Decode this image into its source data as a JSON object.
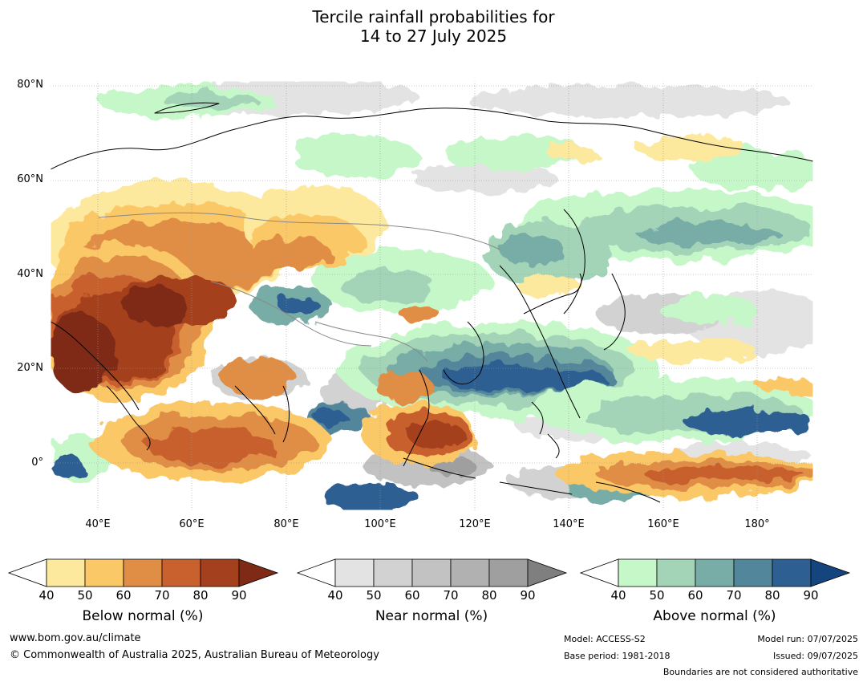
{
  "title": {
    "line1": "Tercile rainfall probabilities for",
    "line2": "14 to 27 July 2025"
  },
  "map": {
    "lat_labels": [
      "80°N",
      "60°N",
      "40°N",
      "20°N",
      "0°"
    ],
    "lon_labels": [
      "40°E",
      "60°E",
      "80°E",
      "100°E",
      "120°E",
      "140°E",
      "160°E",
      "180°"
    ],
    "colors": {
      "ocean": "#ffffff",
      "coastline": "#000000",
      "boundary": "#888888"
    }
  },
  "legends": [
    {
      "name": "below-normal",
      "label": "Below normal (%)",
      "ticks": [
        "40",
        "50",
        "60",
        "70",
        "80",
        "90"
      ],
      "colors": [
        "#ffffff",
        "#fde99d",
        "#fbc867",
        "#e08d45",
        "#c8612e",
        "#a5401f",
        "#7f2a14"
      ]
    },
    {
      "name": "near-normal",
      "label": "Near normal (%)",
      "ticks": [
        "40",
        "50",
        "60",
        "70",
        "80",
        "90"
      ],
      "colors": [
        "#ffffff",
        "#e3e3e3",
        "#d2d2d2",
        "#c2c2c2",
        "#b1b1b1",
        "#9f9f9f",
        "#7f7f7f"
      ]
    },
    {
      "name": "above-normal",
      "label": "Above normal (%)",
      "ticks": [
        "40",
        "50",
        "60",
        "70",
        "80",
        "90"
      ],
      "colors": [
        "#ffffff",
        "#c6f7c9",
        "#a3d4b8",
        "#78ada7",
        "#52869a",
        "#2e5f92",
        "#15457f"
      ]
    }
  ],
  "footer": {
    "website": "www.bom.gov.au/climate",
    "copyright": "© Commonwealth of Australia 2025, Australian Bureau of Meteorology",
    "model": "Model: ACCESS-S2",
    "base_period": "Base period: 1981-2018",
    "model_run": "Model run: 07/07/2025",
    "issued": "Issued: 09/07/2025",
    "boundaries": "Boundaries are not considered authoritative"
  }
}
